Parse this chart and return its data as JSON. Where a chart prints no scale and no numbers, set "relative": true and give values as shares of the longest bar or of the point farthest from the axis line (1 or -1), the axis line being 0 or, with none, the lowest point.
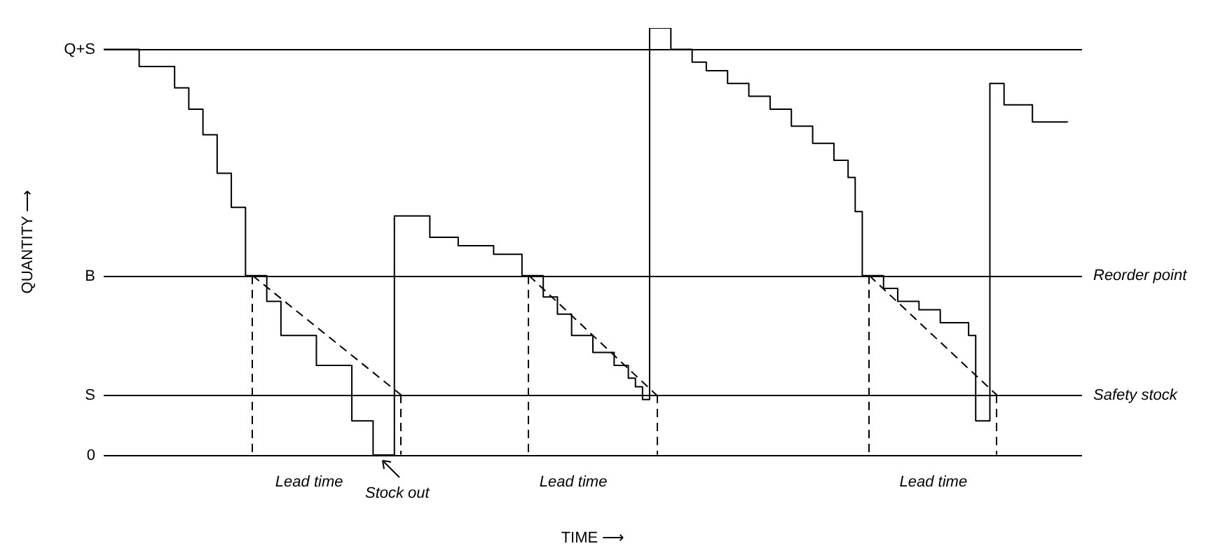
{
  "chart_data": {
    "type": "step",
    "relative": true,
    "xlabel": "TIME ⟶",
    "ylabel": "QUANTITY ⟶",
    "categories": [
      null,
      null,
      null,
      null,
      null,
      null,
      null,
      null,
      null,
      null,
      null,
      null,
      null,
      null,
      null,
      null,
      null,
      null,
      null,
      null,
      null,
      null,
      null,
      null,
      null,
      null,
      null,
      null,
      null,
      null,
      null,
      null,
      null,
      null,
      null,
      null,
      null,
      null,
      null,
      null,
      null,
      null,
      null,
      null,
      null,
      null,
      null,
      null,
      null,
      null,
      null,
      null,
      null,
      null,
      null,
      null,
      null,
      null,
      null,
      null,
      null,
      null,
      null,
      null,
      null,
      null,
      null,
      null,
      null,
      null,
      null,
      null,
      null,
      null,
      null,
      null,
      null,
      null,
      null,
      null,
      null,
      null,
      null,
      null,
      null,
      null,
      null,
      null,
      null,
      null,
      null,
      null,
      null,
      null,
      null,
      null,
      null,
      null,
      null,
      null,
      null,
      null,
      null,
      null,
      null,
      null,
      null,
      null,
      null,
      null,
      null,
      null,
      null,
      null,
      null,
      null,
      null,
      null,
      null,
      null,
      null,
      null,
      null,
      null,
      null,
      null,
      null,
      null,
      null,
      null,
      null,
      null,
      null,
      null,
      null,
      null,
      null,
      null,
      null
    ],
    "series": [
      {
        "type": "step",
        "color": "#000000",
        "line_style": "solid",
        "values": [
          0.95,
          0.95,
          0.95,
          0.95,
          0.95,
          0.95,
          0.91,
          0.91,
          0.91,
          0.91,
          0.91,
          0.86,
          0.86,
          0.81,
          0.81,
          0.75,
          0.75,
          0.66,
          0.66,
          0.58,
          0.58,
          0.42,
          0.42,
          0.42,
          0.36,
          0.36,
          0.28,
          0.28,
          0.28,
          0.28,
          0.28,
          0.21,
          0.21,
          0.21,
          0.21,
          0.21,
          0.08,
          0.08,
          0.08,
          0,
          0,
          0,
          0.56,
          0.56,
          0.56,
          0.56,
          0.56,
          0.51,
          0.51,
          0.51,
          0.51,
          0.49,
          0.49,
          0.49,
          0.49,
          0.49,
          0.47,
          0.47,
          0.47,
          0.47,
          0.42,
          0.42,
          0.42,
          0.37,
          0.37,
          0.33,
          0.33,
          0.28,
          0.28,
          0.28,
          0.24,
          0.24,
          0.24,
          0.21,
          0.21,
          0.18,
          0.16,
          0.13,
          1,
          1,
          1,
          0.95,
          0.95,
          0.95,
          0.92,
          0.92,
          0.9,
          0.9,
          0.9,
          0.87,
          0.87,
          0.87,
          0.84,
          0.84,
          0.84,
          0.81,
          0.81,
          0.81,
          0.77,
          0.77,
          0.77,
          0.73,
          0.73,
          0.73,
          0.69,
          0.69,
          0.65,
          0.57,
          0.42,
          0.42,
          0.42,
          0.39,
          0.39,
          0.36,
          0.36,
          0.36,
          0.34,
          0.34,
          0.34,
          0.31,
          0.31,
          0.31,
          0.31,
          0.28,
          0.08,
          0.08,
          0.87,
          0.87,
          0.82,
          0.82,
          0.82,
          0.82,
          0.78,
          0.78,
          0.78,
          0.78,
          0.78,
          null,
          null
        ]
      },
      {
        "type": "line",
        "color": "#000000",
        "line_style": "dashed",
        "values": [
          null,
          null,
          null,
          null,
          null,
          null,
          null,
          null,
          null,
          null,
          null,
          null,
          null,
          null,
          null,
          null,
          null,
          null,
          null,
          null,
          null,
          0.42,
          null,
          null,
          null,
          null,
          null,
          null,
          null,
          null,
          null,
          null,
          null,
          null,
          null,
          null,
          null,
          null,
          null,
          null,
          null,
          null,
          0.14,
          null,
          null,
          null,
          null,
          null,
          null,
          null,
          null,
          null,
          null,
          null,
          null,
          null,
          null,
          null,
          null,
          null,
          null,
          null,
          null,
          null,
          null,
          null,
          null,
          null,
          null,
          null,
          null,
          null,
          null,
          null,
          null,
          null,
          null,
          null,
          null,
          null,
          null,
          null,
          null,
          null,
          null,
          null,
          null,
          null,
          null,
          null,
          null,
          null,
          null,
          null,
          null,
          null,
          null,
          null,
          null,
          null,
          null,
          null,
          null,
          null,
          null,
          null,
          null,
          null,
          null,
          null,
          null,
          null,
          null,
          null,
          null,
          null,
          null,
          null,
          null,
          null,
          null,
          null,
          null,
          null,
          null,
          null,
          null,
          null,
          null,
          null,
          null,
          null,
          null,
          null,
          null,
          null,
          null,
          null,
          null
        ]
      },
      {
        "type": "line",
        "color": "#000000",
        "line_style": "dashed",
        "values": [
          null,
          null,
          null,
          null,
          null,
          null,
          null,
          null,
          null,
          null,
          null,
          null,
          null,
          null,
          null,
          null,
          null,
          null,
          null,
          null,
          null,
          null,
          null,
          null,
          null,
          null,
          null,
          null,
          null,
          null,
          null,
          null,
          null,
          null,
          null,
          null,
          null,
          null,
          null,
          null,
          null,
          null,
          null,
          null,
          null,
          null,
          null,
          null,
          null,
          null,
          null,
          null,
          null,
          null,
          null,
          null,
          null,
          null,
          null,
          null,
          0.42,
          null,
          null,
          null,
          null,
          null,
          null,
          null,
          null,
          null,
          null,
          null,
          null,
          null,
          null,
          null,
          null,
          null,
          0.14,
          null,
          null,
          null,
          null,
          null,
          null,
          null,
          null,
          null,
          null,
          null,
          null,
          null,
          null,
          null,
          null,
          null,
          null,
          null,
          null,
          null,
          null,
          null,
          null,
          null,
          null,
          null,
          null,
          null,
          null,
          null,
          null,
          null,
          null,
          null,
          null,
          null,
          null,
          null,
          null,
          null,
          null,
          null,
          null,
          null,
          null,
          null,
          null,
          null,
          null,
          null,
          null,
          null,
          null,
          null,
          null,
          null,
          null,
          null,
          null
        ]
      },
      {
        "type": "line",
        "color": "#000000",
        "line_style": "dashed",
        "values": [
          null,
          null,
          null,
          null,
          null,
          null,
          null,
          null,
          null,
          null,
          null,
          null,
          null,
          null,
          null,
          null,
          null,
          null,
          null,
          null,
          null,
          null,
          null,
          null,
          null,
          null,
          null,
          null,
          null,
          null,
          null,
          null,
          null,
          null,
          null,
          null,
          null,
          null,
          null,
          null,
          null,
          null,
          null,
          null,
          null,
          null,
          null,
          null,
          null,
          null,
          null,
          null,
          null,
          null,
          null,
          null,
          null,
          null,
          null,
          null,
          null,
          null,
          null,
          null,
          null,
          null,
          null,
          null,
          null,
          null,
          null,
          null,
          null,
          null,
          null,
          null,
          null,
          null,
          null,
          null,
          null,
          null,
          null,
          null,
          null,
          null,
          null,
          null,
          null,
          null,
          null,
          null,
          null,
          null,
          null,
          null,
          null,
          null,
          null,
          null,
          null,
          null,
          null,
          null,
          null,
          null,
          null,
          null,
          0.42,
          null,
          null,
          null,
          null,
          null,
          null,
          null,
          null,
          null,
          null,
          null,
          null,
          null,
          null,
          null,
          null,
          null,
          0.14,
          null,
          null,
          null,
          null,
          null,
          null,
          null,
          null,
          null,
          null,
          null,
          null
        ]
      }
    ],
    "ref_lines": [
      {
        "axis": "y",
        "value": 0.95,
        "label": "Q+S",
        "color": "#000000"
      },
      {
        "axis": "y",
        "value": 0.42,
        "label": "B",
        "color": "#000000"
      },
      {
        "axis": "y",
        "value": 0.14,
        "label": "S",
        "color": "#000000"
      },
      {
        "axis": "y",
        "value": 0,
        "label": "0",
        "color": "#000000"
      }
    ],
    "annotations": [
      "Reorder point",
      "Safety stock",
      "Lead time",
      "Stock out",
      "Lead time",
      "Lead time"
    ]
  }
}
